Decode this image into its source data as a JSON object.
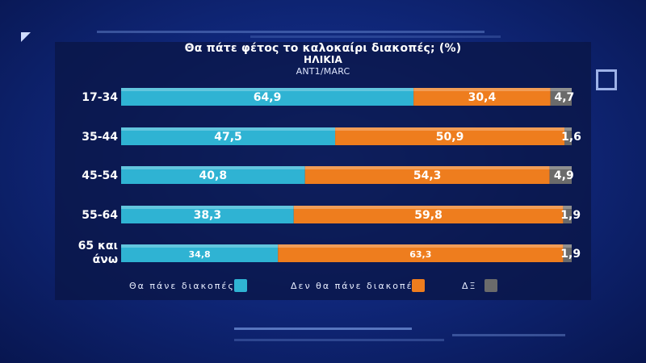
{
  "chart_data": {
    "type": "bar",
    "stacked": true,
    "orientation": "horizontal",
    "title": "Θα πάτε φέτος το καλοκαίρι διακοπές; (%)",
    "subtitle": "ΗΛΙΚΙΑ",
    "source": "ANT1/MARC",
    "categories": [
      "17-34",
      "35-44",
      "45-54",
      "55-64",
      "65 και άνω"
    ],
    "series": [
      {
        "name": "Θα πάνε διακοπές",
        "values": [
          64.9,
          47.5,
          40.8,
          38.3,
          34.8
        ],
        "labels": [
          "64,9",
          "47,5",
          "40,8",
          "38,3",
          "34,8"
        ],
        "color": "#2fb3d3"
      },
      {
        "name": "Δεν θα πάνε διακοπές",
        "values": [
          30.4,
          50.9,
          54.3,
          59.8,
          63.3
        ],
        "labels": [
          "30,4",
          "50,9",
          "54,3",
          "59,8",
          "63,3"
        ],
        "color": "#ee7d1e"
      },
      {
        "name": "ΔΞ",
        "values": [
          4.7,
          1.6,
          4.9,
          1.9,
          1.9
        ],
        "labels": [
          "4,7",
          "1,6",
          "4,9",
          "1,9",
          "1,9"
        ],
        "color": "#6b6b6b"
      }
    ],
    "legend_position": "bottom"
  }
}
